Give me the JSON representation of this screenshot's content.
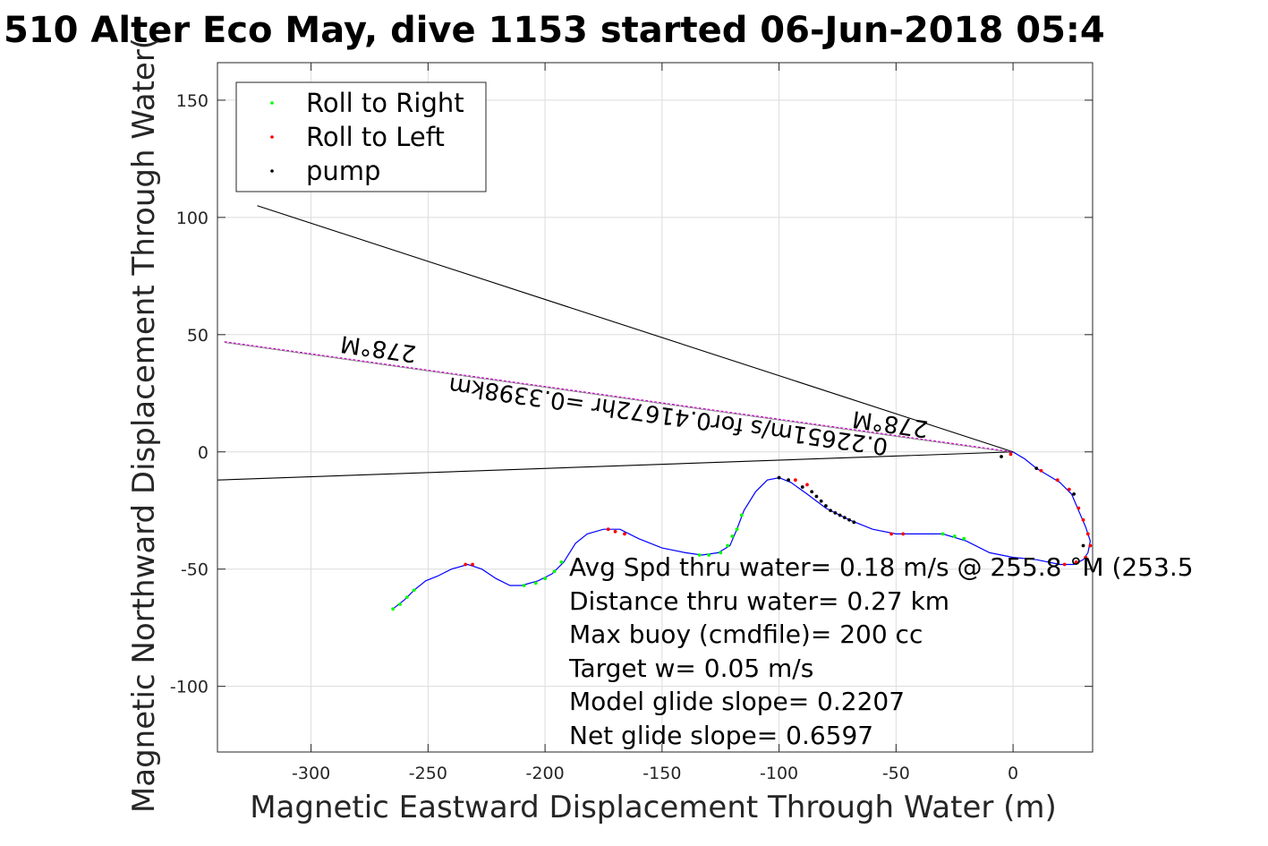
{
  "chart_data": {
    "type": "line",
    "title": "510 Alter Eco May, dive 1153 started 06-Jun-2018 05:4",
    "xlabel": "Magnetic Eastward Displacement Through Water (m)",
    "ylabel": "Magnetic Northward Displacement Through Water(",
    "xlim": [
      -340,
      34
    ],
    "ylim": [
      -128,
      166
    ],
    "x_ticks": [
      -300,
      -250,
      -200,
      -150,
      -100,
      -50,
      0
    ],
    "y_ticks": [
      -100,
      -50,
      0,
      50,
      100,
      150
    ],
    "x_tick_labels": [
      "-300",
      "-250",
      "-200",
      "-150",
      "-100",
      "-50",
      "0"
    ],
    "y_tick_labels": [
      "-100",
      "-50",
      "0",
      "50",
      "100",
      "150"
    ],
    "grid": true,
    "legend_position": "top-left",
    "legend": [
      {
        "label": "Roll to Right",
        "color": "#00ff00"
      },
      {
        "label": "Roll to Left",
        "color": "#ff0000"
      },
      {
        "label": "pump",
        "color": "#000000"
      }
    ],
    "track": {
      "color": "#0000ff",
      "points": [
        [
          0,
          0
        ],
        [
          5,
          -3
        ],
        [
          10,
          -7
        ],
        [
          15,
          -10
        ],
        [
          20,
          -13
        ],
        [
          25,
          -18
        ],
        [
          28,
          -25
        ],
        [
          31,
          -32
        ],
        [
          33,
          -38
        ],
        [
          32,
          -43
        ],
        [
          30,
          -46
        ],
        [
          26,
          -48
        ],
        [
          20,
          -48
        ],
        [
          10,
          -46
        ],
        [
          0,
          -45
        ],
        [
          -10,
          -43
        ],
        [
          -20,
          -38
        ],
        [
          -30,
          -35
        ],
        [
          -40,
          -35
        ],
        [
          -50,
          -35
        ],
        [
          -60,
          -33
        ],
        [
          -70,
          -29
        ],
        [
          -80,
          -24
        ],
        [
          -88,
          -18
        ],
        [
          -95,
          -13
        ],
        [
          -100,
          -11
        ],
        [
          -105,
          -12
        ],
        [
          -110,
          -17
        ],
        [
          -115,
          -25
        ],
        [
          -118,
          -33
        ],
        [
          -121,
          -40
        ],
        [
          -126,
          -43
        ],
        [
          -133,
          -44
        ],
        [
          -140,
          -43
        ],
        [
          -150,
          -41
        ],
        [
          -160,
          -37
        ],
        [
          -168,
          -33
        ],
        [
          -175,
          -33
        ],
        [
          -182,
          -35
        ],
        [
          -187,
          -39
        ],
        [
          -192,
          -47
        ],
        [
          -197,
          -52
        ],
        [
          -203,
          -55
        ],
        [
          -210,
          -57
        ],
        [
          -215,
          -57
        ],
        [
          -221,
          -54
        ],
        [
          -227,
          -50
        ],
        [
          -233,
          -48
        ],
        [
          -240,
          -50
        ],
        [
          -246,
          -53
        ],
        [
          -251,
          -55
        ],
        [
          -256,
          -59
        ],
        [
          -260,
          -63
        ],
        [
          -265,
          -67
        ]
      ]
    },
    "roll_right_points": [
      [
        -265,
        -67
      ],
      [
        -262,
        -65
      ],
      [
        -259,
        -62
      ],
      [
        -256,
        -59
      ],
      [
        -209,
        -57
      ],
      [
        -204,
        -56
      ],
      [
        -200,
        -54
      ],
      [
        -196,
        -51
      ],
      [
        -193,
        -47
      ],
      [
        -134,
        -44
      ],
      [
        -130,
        -44
      ],
      [
        -125,
        -43
      ],
      [
        -122,
        -40
      ],
      [
        -120,
        -36
      ],
      [
        -118,
        -33
      ],
      [
        -116,
        -27
      ],
      [
        -30,
        -35
      ],
      [
        -25,
        -36
      ],
      [
        -21,
        -37
      ]
    ],
    "roll_left_points": [
      [
        -234,
        -48
      ],
      [
        -231,
        -48
      ],
      [
        -173,
        -33
      ],
      [
        -170,
        -34
      ],
      [
        -166,
        -35
      ],
      [
        -93,
        -12
      ],
      [
        -88,
        -14
      ],
      [
        -52,
        -35
      ],
      [
        -47,
        -35
      ],
      [
        -1,
        -1
      ],
      [
        12,
        -8
      ],
      [
        19,
        -12
      ],
      [
        24,
        -16
      ],
      [
        28,
        -24
      ],
      [
        30,
        -29
      ],
      [
        32,
        -35
      ],
      [
        33,
        -40
      ],
      [
        31,
        -45
      ],
      [
        27,
        -47
      ],
      [
        22,
        -48
      ]
    ],
    "pump_points": [
      [
        -100,
        -11
      ],
      [
        -96,
        -12
      ],
      [
        -90,
        -15
      ],
      [
        -86,
        -17
      ],
      [
        -84,
        -19
      ],
      [
        -82,
        -21
      ],
      [
        -80,
        -23
      ],
      [
        -78,
        -25
      ],
      [
        -76,
        -26
      ],
      [
        -74,
        -27
      ],
      [
        -72,
        -28
      ],
      [
        -70,
        -29
      ],
      [
        -68,
        -30
      ],
      [
        -5,
        -2
      ],
      [
        10,
        -7
      ],
      [
        26,
        -18
      ],
      [
        30,
        -40
      ]
    ],
    "reference_lines": [
      {
        "name": "",
        "color": "#000000",
        "x": [
          -323,
          0
        ],
        "y": [
          105,
          0
        ]
      },
      {
        "name": "",
        "color": "#000000",
        "x": [
          -340,
          0
        ],
        "y": [
          -12,
          0
        ]
      },
      {
        "name": "",
        "color": "#cc00cc",
        "dashed": true,
        "x": [
          -337,
          0
        ],
        "y": [
          47,
          0
        ]
      }
    ],
    "line_labels": {
      "heading_far": "278°M",
      "heading_near": "278°M",
      "speed_distance": "0.22651m/s for0.41672hr =0.3398km"
    },
    "annotations": [
      "Avg Spd thru water=  0.18 m/s @ 255.8 °M (253.5",
      "Distance thru water=  0.27 km",
      "Max buoy (cmdfile)= 200 cc",
      "Target w= 0.05 m/s",
      "Model glide slope= 0.2207",
      "Net glide slope= 0.6597"
    ]
  }
}
